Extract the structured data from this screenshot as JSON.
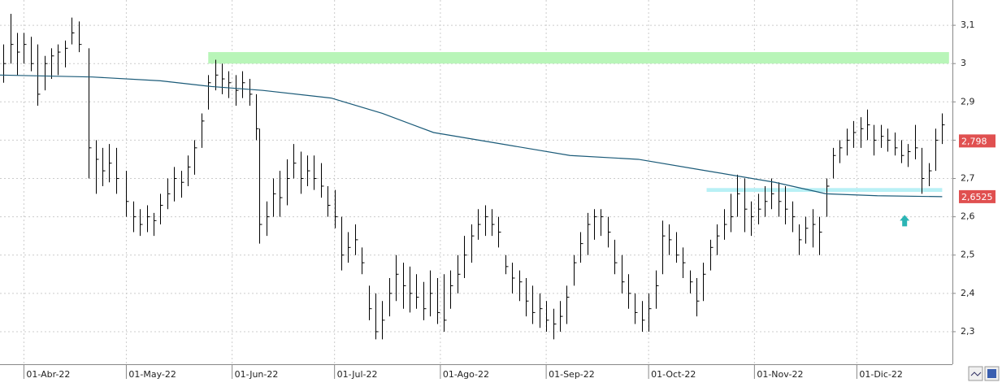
{
  "chart_data": {
    "type": "ohlc",
    "xlim": [
      -7,
      272
    ],
    "ylim": [
      2.215,
      3.166
    ],
    "yticks": [
      {
        "value": 2.3,
        "label": "2,3"
      },
      {
        "value": 2.4,
        "label": "2,4"
      },
      {
        "value": 2.5,
        "label": "2,5"
      },
      {
        "value": 2.6,
        "label": "2,6"
      },
      {
        "value": 2.7,
        "label": "2,7"
      },
      {
        "value": 2.8,
        "label": "2,8"
      },
      {
        "value": 2.9,
        "label": "2,9"
      },
      {
        "value": 3.0,
        "label": "3"
      },
      {
        "value": 3.1,
        "label": "3,1"
      }
    ],
    "xticks": [
      {
        "value": 0,
        "label": "01-Abr-22"
      },
      {
        "value": 30,
        "label": "01-May-22"
      },
      {
        "value": 61,
        "label": "01-Jun-22"
      },
      {
        "value": 91,
        "label": "01-Jul-22"
      },
      {
        "value": 122,
        "label": "01-Ago-22"
      },
      {
        "value": 153,
        "label": "01-Sep-22"
      },
      {
        "value": 183,
        "label": "01-Oct-22"
      },
      {
        "value": 214,
        "label": "01-Nov-22"
      },
      {
        "value": 244,
        "label": "01-Dic-22"
      }
    ],
    "grid": true,
    "color": "#000000",
    "x": [
      -6,
      -4,
      -2,
      0,
      2,
      4,
      6,
      8,
      10,
      12,
      14,
      16,
      19,
      21,
      23,
      25,
      27,
      30,
      32,
      34,
      36,
      38,
      40,
      42,
      44,
      46,
      48,
      50,
      52,
      54,
      56,
      58,
      60,
      62,
      64,
      66,
      68,
      69,
      71,
      73,
      75,
      77,
      79,
      81,
      83,
      85,
      87,
      89,
      91,
      93,
      95,
      97,
      99,
      101,
      103,
      105,
      107,
      109,
      111,
      113,
      115,
      117,
      119,
      121,
      123,
      125,
      127,
      129,
      131,
      133,
      135,
      137,
      139,
      141,
      143,
      145,
      147,
      149,
      151,
      153,
      155,
      157,
      159,
      161,
      163,
      165,
      167,
      169,
      171,
      173,
      175,
      177,
      179,
      181,
      183,
      185,
      187,
      189,
      191,
      193,
      195,
      197,
      199,
      201,
      203,
      205,
      207,
      209,
      211,
      213,
      215,
      217,
      219,
      221,
      223,
      225,
      227,
      229,
      231,
      233,
      235,
      237,
      239,
      241,
      243,
      245,
      247,
      249,
      251,
      253,
      255,
      257,
      259,
      261,
      263,
      265,
      267,
      269
    ],
    "high": [
      3.05,
      3.13,
      3.08,
      3.08,
      3.07,
      3.05,
      3.02,
      3.04,
      3.05,
      3.06,
      3.12,
      3.11,
      3.04,
      2.8,
      2.78,
      2.79,
      2.78,
      2.72,
      2.64,
      2.62,
      2.63,
      2.61,
      2.66,
      2.7,
      2.73,
      2.72,
      2.76,
      2.8,
      2.87,
      2.97,
      3.01,
      3.0,
      2.98,
      2.97,
      2.98,
      2.96,
      2.92,
      2.83,
      2.64,
      2.7,
      2.72,
      2.75,
      2.79,
      2.77,
      2.76,
      2.76,
      2.74,
      2.68,
      2.67,
      2.6,
      2.56,
      2.58,
      2.52,
      2.42,
      2.4,
      2.38,
      2.44,
      2.5,
      2.48,
      2.47,
      2.45,
      2.43,
      2.46,
      2.44,
      2.45,
      2.46,
      2.5,
      2.55,
      2.58,
      2.62,
      2.63,
      2.62,
      2.6,
      2.5,
      2.48,
      2.46,
      2.44,
      2.42,
      2.4,
      2.38,
      2.36,
      2.38,
      2.42,
      2.5,
      2.56,
      2.61,
      2.62,
      2.62,
      2.6,
      2.54,
      2.5,
      2.45,
      2.4,
      2.38,
      2.4,
      2.46,
      2.59,
      2.58,
      2.56,
      2.52,
      2.46,
      2.44,
      2.48,
      2.54,
      2.58,
      2.62,
      2.66,
      2.71,
      2.7,
      2.64,
      2.66,
      2.68,
      2.7,
      2.69,
      2.68,
      2.64,
      2.58,
      2.6,
      2.62,
      2.6,
      2.7,
      2.78,
      2.8,
      2.83,
      2.85,
      2.86,
      2.88,
      2.84,
      2.84,
      2.83,
      2.82,
      2.8,
      2.79,
      2.84,
      2.78,
      2.74,
      2.83,
      2.87
    ],
    "low": [
      2.95,
      3.0,
      2.97,
      3.0,
      2.98,
      2.89,
      2.93,
      2.96,
      2.97,
      2.99,
      3.05,
      3.03,
      2.7,
      2.66,
      2.68,
      2.69,
      2.66,
      2.6,
      2.56,
      2.55,
      2.56,
      2.55,
      2.58,
      2.62,
      2.64,
      2.65,
      2.68,
      2.71,
      2.78,
      2.88,
      2.93,
      2.92,
      2.91,
      2.89,
      2.91,
      2.89,
      2.8,
      2.53,
      2.55,
      2.6,
      2.6,
      2.63,
      2.7,
      2.66,
      2.68,
      2.67,
      2.65,
      2.6,
      2.57,
      2.46,
      2.48,
      2.5,
      2.45,
      2.33,
      2.28,
      2.28,
      2.34,
      2.38,
      2.36,
      2.35,
      2.36,
      2.33,
      2.34,
      2.32,
      2.3,
      2.36,
      2.4,
      2.44,
      2.48,
      2.54,
      2.55,
      2.55,
      2.52,
      2.45,
      2.4,
      2.38,
      2.34,
      2.32,
      2.31,
      2.3,
      2.28,
      2.3,
      2.32,
      2.42,
      2.48,
      2.5,
      2.54,
      2.55,
      2.52,
      2.45,
      2.4,
      2.36,
      2.32,
      2.3,
      2.3,
      2.36,
      2.45,
      2.5,
      2.48,
      2.44,
      2.4,
      2.34,
      2.38,
      2.46,
      2.5,
      2.54,
      2.56,
      2.6,
      2.56,
      2.55,
      2.58,
      2.6,
      2.62,
      2.6,
      2.58,
      2.56,
      2.5,
      2.53,
      2.52,
      2.5,
      2.6,
      2.7,
      2.74,
      2.76,
      2.78,
      2.78,
      2.8,
      2.76,
      2.78,
      2.77,
      2.76,
      2.74,
      2.73,
      2.75,
      2.66,
      2.68,
      2.72,
      2.79
    ],
    "close": [
      3.0,
      3.05,
      3.03,
      3.05,
      3.0,
      2.92,
      3.0,
      3.02,
      3.03,
      3.04,
      3.08,
      3.05,
      2.78,
      2.75,
      2.72,
      2.74,
      2.7,
      2.64,
      2.6,
      2.58,
      2.6,
      2.59,
      2.63,
      2.66,
      2.7,
      2.69,
      2.73,
      2.78,
      2.85,
      2.95,
      2.97,
      2.96,
      2.95,
      2.93,
      2.95,
      2.92,
      2.83,
      2.58,
      2.6,
      2.66,
      2.65,
      2.7,
      2.74,
      2.7,
      2.72,
      2.7,
      2.68,
      2.63,
      2.6,
      2.5,
      2.52,
      2.54,
      2.48,
      2.36,
      2.3,
      2.33,
      2.4,
      2.45,
      2.42,
      2.4,
      2.39,
      2.36,
      2.4,
      2.35,
      2.33,
      2.42,
      2.45,
      2.5,
      2.55,
      2.58,
      2.6,
      2.58,
      2.56,
      2.47,
      2.44,
      2.43,
      2.38,
      2.35,
      2.36,
      2.33,
      2.32,
      2.34,
      2.39,
      2.48,
      2.53,
      2.58,
      2.6,
      2.6,
      2.56,
      2.48,
      2.43,
      2.4,
      2.35,
      2.33,
      2.36,
      2.42,
      2.55,
      2.54,
      2.5,
      2.48,
      2.43,
      2.38,
      2.45,
      2.52,
      2.55,
      2.58,
      2.6,
      2.66,
      2.62,
      2.6,
      2.62,
      2.64,
      2.66,
      2.64,
      2.62,
      2.6,
      2.54,
      2.57,
      2.58,
      2.56,
      2.68,
      2.76,
      2.78,
      2.8,
      2.82,
      2.83,
      2.84,
      2.8,
      2.81,
      2.8,
      2.78,
      2.76,
      2.77,
      2.78,
      2.7,
      2.72,
      2.8,
      2.84
    ],
    "ma": {
      "color": "#1a5a78",
      "x": [
        -7,
        20,
        40,
        55,
        70,
        90,
        105,
        120,
        140,
        160,
        180,
        200,
        220,
        235,
        250,
        269
      ],
      "values": [
        2.97,
        2.965,
        2.955,
        2.94,
        2.93,
        2.91,
        2.87,
        2.82,
        2.79,
        2.76,
        2.75,
        2.72,
        2.69,
        2.66,
        2.655,
        2.6525
      ]
    },
    "zones": [
      {
        "x": [
          54,
          271
        ],
        "y": [
          3.0,
          3.03
        ],
        "color": "#b8f5b8"
      },
      {
        "x": [
          200,
          269
        ],
        "y": [
          2.665,
          2.675
        ],
        "color": "#b8f0f5"
      }
    ],
    "arrow": {
      "x": 258,
      "y": 2.59,
      "color": "#2bb5b5"
    },
    "price_labels": [
      {
        "value": 2.798,
        "label": "2,798",
        "color": "#e05050"
      },
      {
        "value": 2.6525,
        "label": "2,6525",
        "color": "#e05050"
      }
    ]
  }
}
